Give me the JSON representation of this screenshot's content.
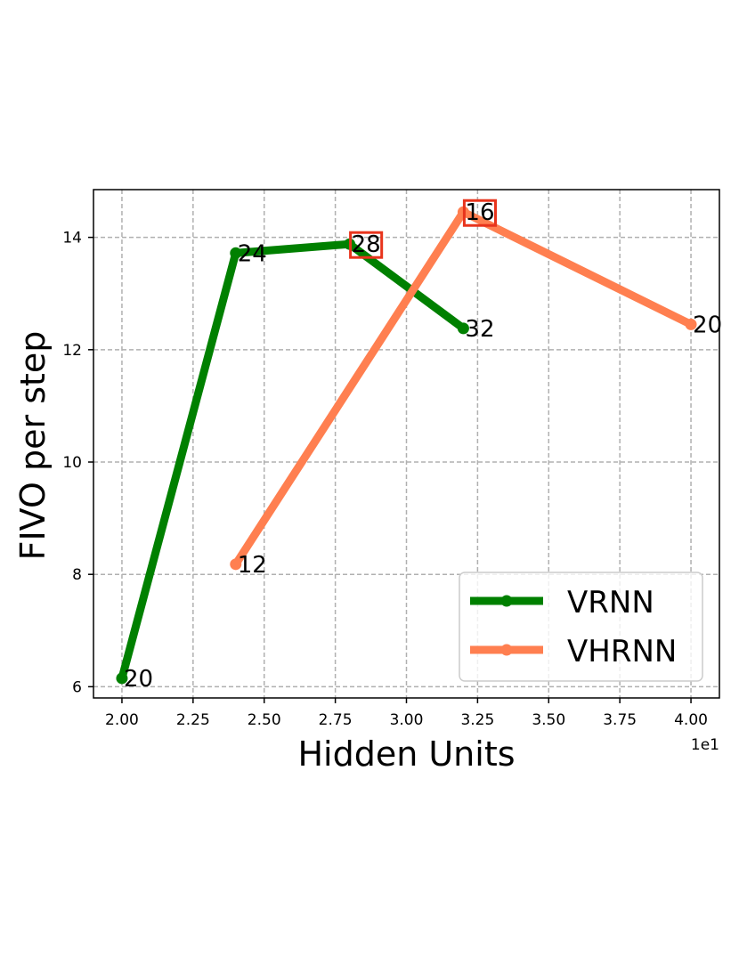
{
  "chart_data": {
    "type": "line",
    "title": "",
    "xlabel": "Hidden Units",
    "ylabel": "FIVO per step",
    "x_offset_label": "1e1",
    "xlim": [
      1.9,
      4.1
    ],
    "ylim": [
      5.8,
      14.85
    ],
    "xticks": [
      2.0,
      2.25,
      2.5,
      2.75,
      3.0,
      3.25,
      3.5,
      3.75,
      4.0
    ],
    "xtick_labels": [
      "2.00",
      "2.25",
      "2.50",
      "2.75",
      "3.00",
      "3.25",
      "3.50",
      "3.75",
      "4.00"
    ],
    "yticks": [
      6,
      8,
      10,
      12,
      14
    ],
    "ytick_labels": [
      "6",
      "8",
      "10",
      "12",
      "14"
    ],
    "grid": true,
    "legend_position": "lower-right",
    "series": [
      {
        "name": "VRNN",
        "color": "#008000",
        "x": [
          2.0,
          2.4,
          2.8,
          3.2
        ],
        "y": [
          6.15,
          13.72,
          13.88,
          12.38
        ],
        "point_labels": [
          "20",
          "24",
          "28",
          "32"
        ],
        "boxed": [
          false,
          false,
          true,
          false
        ]
      },
      {
        "name": "VHRNN",
        "color": "#FF7F50",
        "x": [
          2.4,
          3.2,
          4.0
        ],
        "y": [
          8.18,
          14.45,
          12.45
        ],
        "point_labels": [
          "12",
          "16",
          "20"
        ],
        "boxed": [
          false,
          true,
          false
        ]
      }
    ],
    "highlight_box_color": "#E8341C"
  }
}
